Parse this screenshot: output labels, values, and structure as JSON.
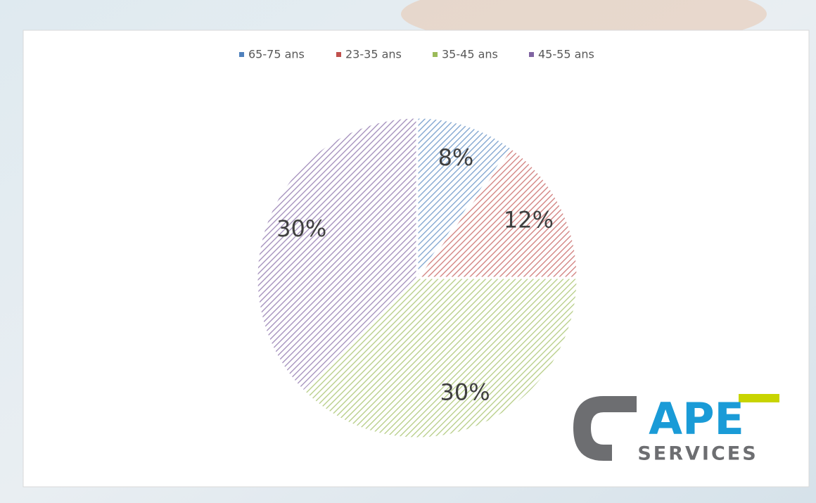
{
  "chart_data": {
    "type": "pie",
    "categories": [
      "65-75 ans",
      "23-35 ans",
      "35-45 ans",
      "45-55 ans"
    ],
    "values": [
      8,
      12,
      30,
      30
    ],
    "value_labels": [
      "8%",
      "12%",
      "30%",
      "30%"
    ],
    "colors": [
      "#4f81bd",
      "#c0504d",
      "#9bbb59",
      "#8064a2"
    ],
    "legend": "top"
  },
  "logo": {
    "name": "APE",
    "tagline": "SERVICES"
  }
}
